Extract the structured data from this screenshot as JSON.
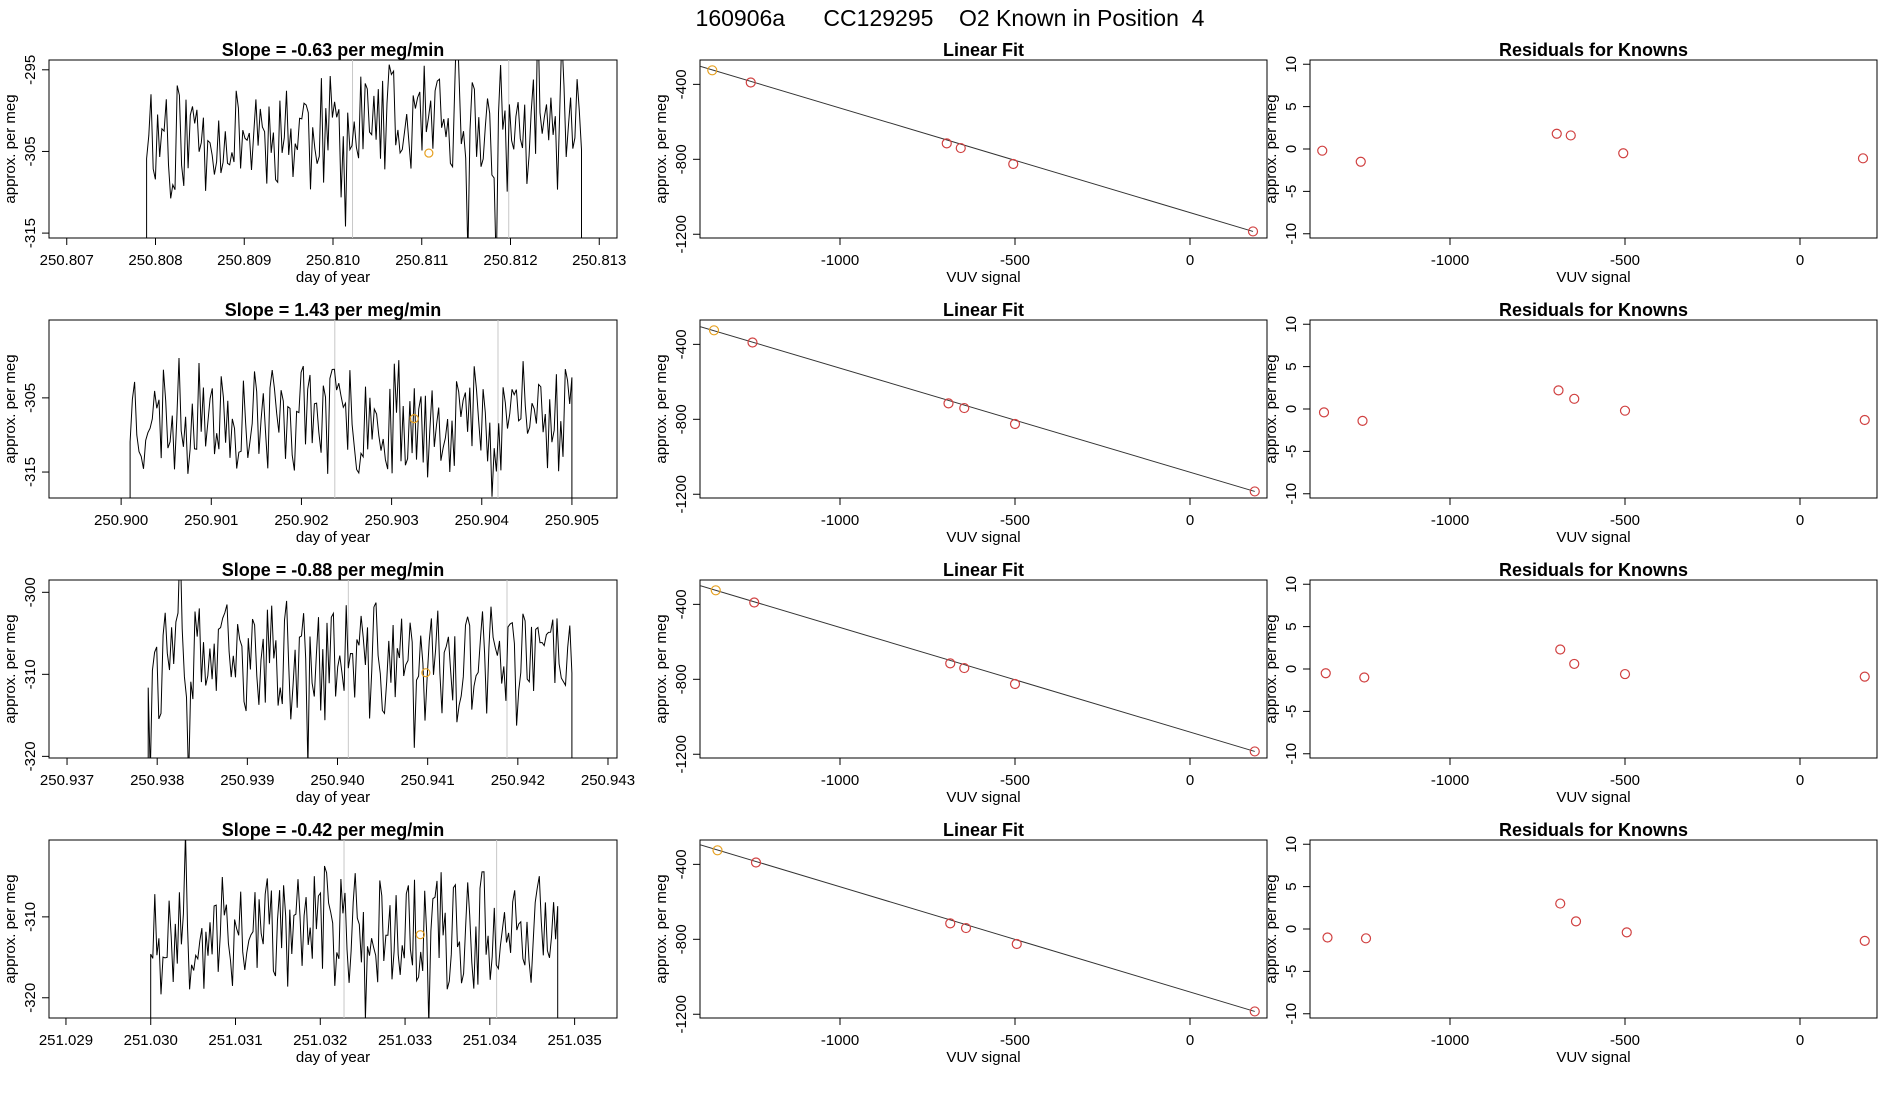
{
  "page": {
    "title": "160906a      CC129295    O2 Known in Position  4"
  },
  "colors": {
    "axis": "#000000",
    "trace": "#000000",
    "fit_line": "#333333",
    "guide_line": "#c8c8c8",
    "point_first": "#e6a020",
    "point_known": "#d04040"
  },
  "chart_data": [
    {
      "type": "line",
      "panel": "time-series",
      "row": 1,
      "title": "Slope =  -0.63  per meg/min",
      "xlabel": "day of year",
      "ylabel": "approx. per meg",
      "xlim": [
        250.8068,
        250.8132
      ],
      "ylim": [
        -315.6,
        -293.8
      ],
      "xticks": [
        250.807,
        250.808,
        250.809,
        250.81,
        250.811,
        250.812,
        250.813
      ],
      "xtick_labels": [
        "250.807",
        "250.808",
        "250.809",
        "250.810",
        "250.811",
        "250.812",
        "250.813"
      ],
      "yticks": [
        -295,
        -305,
        -315
      ],
      "ytick_labels": [
        "-295",
        "-305",
        "-315"
      ],
      "x_start": 250.8079,
      "x_end": 250.8128,
      "n_points": 200,
      "y_center": -302.5,
      "y_amp": 5,
      "seed": 11,
      "guides": [
        250.81022,
        250.81198
      ],
      "marker": {
        "x": 250.81108,
        "y": -305.2
      }
    },
    {
      "type": "scatter",
      "panel": "linear-fit",
      "row": 1,
      "title": "Linear Fit",
      "xlabel": "VUV signal",
      "ylabel": "approx. per meg",
      "xlim": [
        -1400,
        220
      ],
      "ylim": [
        -1220,
        -270
      ],
      "xticks": [
        -1000,
        -500,
        0
      ],
      "xtick_labels": [
        "-1000",
        "-500",
        "0"
      ],
      "yticks": [
        -400,
        -800,
        -1200
      ],
      "ytick_labels": [
        "-400",
        "-800",
        "-1200"
      ],
      "points": [
        {
          "x": -1365,
          "y": -325
        },
        {
          "x": -1255,
          "y": -390
        },
        {
          "x": -695,
          "y": -715
        },
        {
          "x": -655,
          "y": -740
        },
        {
          "x": -505,
          "y": -825
        },
        {
          "x": 180,
          "y": -1185
        }
      ],
      "fit": {
        "x0": -1400,
        "y0": -303,
        "x1": 180,
        "y1": -1185
      }
    },
    {
      "type": "scatter",
      "panel": "residuals",
      "row": 1,
      "title": "Residuals for Knowns",
      "xlabel": "VUV signal",
      "ylabel": "approx. per meg",
      "xlim": [
        -1400,
        220
      ],
      "ylim": [
        -10.5,
        10.5
      ],
      "xticks": [
        -1000,
        -500,
        0
      ],
      "xtick_labels": [
        "-1000",
        "-500",
        "0"
      ],
      "yticks": [
        10,
        5,
        0,
        -5,
        -10
      ],
      "ytick_labels": [
        "10",
        "5",
        "0",
        "-5",
        "-10"
      ],
      "points": [
        {
          "x": -1365,
          "y": -0.2
        },
        {
          "x": -1255,
          "y": -1.5
        },
        {
          "x": -695,
          "y": 1.8
        },
        {
          "x": -655,
          "y": 1.6
        },
        {
          "x": -505,
          "y": -0.5
        },
        {
          "x": 180,
          "y": -1.1
        }
      ]
    },
    {
      "type": "line",
      "panel": "time-series",
      "row": 2,
      "title": "Slope =  1.43  per meg/min",
      "xlabel": "day of year",
      "ylabel": "approx. per meg",
      "xlim": [
        250.8992,
        250.9055
      ],
      "ylim": [
        -318.5,
        -294.5
      ],
      "xticks": [
        250.9,
        250.901,
        250.902,
        250.903,
        250.904,
        250.905
      ],
      "xtick_labels": [
        "250.900",
        "250.901",
        "250.902",
        "250.903",
        "250.904",
        "250.905"
      ],
      "yticks": [
        -305,
        -315
      ],
      "ytick_labels": [
        "-305",
        "-315"
      ],
      "x_start": 250.9001,
      "x_end": 250.905,
      "n_points": 200,
      "y_center": -307.5,
      "y_amp": 5.2,
      "seed": 23,
      "guides": [
        250.90237,
        250.90418
      ],
      "marker": {
        "x": 250.90325,
        "y": -307.8
      }
    },
    {
      "type": "scatter",
      "panel": "linear-fit",
      "row": 2,
      "title": "Linear Fit",
      "xlabel": "VUV signal",
      "ylabel": "approx. per meg",
      "xlim": [
        -1400,
        220
      ],
      "ylim": [
        -1220,
        -270
      ],
      "xticks": [
        -1000,
        -500,
        0
      ],
      "xtick_labels": [
        "-1000",
        "-500",
        "0"
      ],
      "yticks": [
        -400,
        -800,
        -1200
      ],
      "ytick_labels": [
        "-400",
        "-800",
        "-1200"
      ],
      "points": [
        {
          "x": -1360,
          "y": -325
        },
        {
          "x": -1250,
          "y": -390
        },
        {
          "x": -690,
          "y": -715
        },
        {
          "x": -645,
          "y": -740
        },
        {
          "x": -500,
          "y": -825
        },
        {
          "x": 185,
          "y": -1185
        }
      ],
      "fit": {
        "x0": -1400,
        "y0": -305,
        "x1": 185,
        "y1": -1185
      }
    },
    {
      "type": "scatter",
      "panel": "residuals",
      "row": 2,
      "title": "Residuals for Knowns",
      "xlabel": "VUV signal",
      "ylabel": "approx. per meg",
      "xlim": [
        -1400,
        220
      ],
      "ylim": [
        -10.5,
        10.5
      ],
      "xticks": [
        -1000,
        -500,
        0
      ],
      "xtick_labels": [
        "-1000",
        "-500",
        "0"
      ],
      "yticks": [
        10,
        5,
        0,
        -5,
        -10
      ],
      "ytick_labels": [
        "10",
        "5",
        "0",
        "-5",
        "-10"
      ],
      "points": [
        {
          "x": -1360,
          "y": -0.4
        },
        {
          "x": -1250,
          "y": -1.4
        },
        {
          "x": -690,
          "y": 2.2
        },
        {
          "x": -645,
          "y": 1.2
        },
        {
          "x": -500,
          "y": -0.2
        },
        {
          "x": 185,
          "y": -1.3
        }
      ]
    },
    {
      "type": "line",
      "panel": "time-series",
      "row": 3,
      "title": "Slope =  -0.88  per meg/min",
      "xlabel": "day of year",
      "ylabel": "approx. per meg",
      "xlim": [
        250.9368,
        250.9431
      ],
      "ylim": [
        -320.2,
        -298.5
      ],
      "xticks": [
        250.937,
        250.938,
        250.939,
        250.94,
        250.941,
        250.942,
        250.943
      ],
      "xtick_labels": [
        "250.937",
        "250.938",
        "250.939",
        "250.940",
        "250.941",
        "250.942",
        "250.943"
      ],
      "yticks": [
        -300,
        -310,
        -320
      ],
      "ytick_labels": [
        "-300",
        "-310",
        "-320"
      ],
      "x_start": 250.9379,
      "x_end": 250.9426,
      "n_points": 200,
      "y_center": -308.5,
      "y_amp": 4.8,
      "seed": 37,
      "guides": [
        250.94012,
        250.94188
      ],
      "marker": {
        "x": 250.94098,
        "y": -309.8
      }
    },
    {
      "type": "scatter",
      "panel": "linear-fit",
      "row": 3,
      "title": "Linear Fit",
      "xlabel": "VUV signal",
      "ylabel": "approx. per meg",
      "xlim": [
        -1400,
        220
      ],
      "ylim": [
        -1220,
        -270
      ],
      "xticks": [
        -1000,
        -500,
        0
      ],
      "xtick_labels": [
        "-1000",
        "-500",
        "0"
      ],
      "yticks": [
        -400,
        -800,
        -1200
      ],
      "ytick_labels": [
        "-400",
        "-800",
        "-1200"
      ],
      "points": [
        {
          "x": -1355,
          "y": -325
        },
        {
          "x": -1245,
          "y": -390
        },
        {
          "x": -685,
          "y": -715
        },
        {
          "x": -645,
          "y": -740
        },
        {
          "x": -500,
          "y": -825
        },
        {
          "x": 185,
          "y": -1185
        }
      ],
      "fit": {
        "x0": -1400,
        "y0": -300,
        "x1": 185,
        "y1": -1185
      }
    },
    {
      "type": "scatter",
      "panel": "residuals",
      "row": 3,
      "title": "Residuals for Knowns",
      "xlabel": "VUV signal",
      "ylabel": "approx. per meg",
      "xlim": [
        -1400,
        220
      ],
      "ylim": [
        -10.5,
        10.5
      ],
      "xticks": [
        -1000,
        -500,
        0
      ],
      "xtick_labels": [
        "-1000",
        "-500",
        "0"
      ],
      "yticks": [
        10,
        5,
        0,
        -5,
        -10
      ],
      "ytick_labels": [
        "10",
        "5",
        "0",
        "-5",
        "-10"
      ],
      "points": [
        {
          "x": -1355,
          "y": -0.5
        },
        {
          "x": -1245,
          "y": -1.0
        },
        {
          "x": -685,
          "y": 2.3
        },
        {
          "x": -645,
          "y": 0.6
        },
        {
          "x": -500,
          "y": -0.6
        },
        {
          "x": 185,
          "y": -0.9
        }
      ]
    },
    {
      "type": "line",
      "panel": "time-series",
      "row": 4,
      "title": "Slope =  -0.42  per meg/min",
      "xlabel": "day of year",
      "ylabel": "approx. per meg",
      "xlim": [
        251.0288,
        251.0355
      ],
      "ylim": [
        -322.5,
        -300.5
      ],
      "xticks": [
        251.029,
        251.03,
        251.031,
        251.032,
        251.033,
        251.034,
        251.035
      ],
      "xtick_labels": [
        "251.029",
        "251.030",
        "251.031",
        "251.032",
        "251.033",
        "251.034",
        "251.035"
      ],
      "yticks": [
        -310,
        -320
      ],
      "ytick_labels": [
        "-310",
        "-320"
      ],
      "x_start": 251.03,
      "x_end": 251.0348,
      "n_points": 200,
      "y_center": -311.5,
      "y_amp": 4.9,
      "seed": 53,
      "guides": [
        251.03228,
        251.03408
      ],
      "marker": {
        "x": 251.03318,
        "y": -312.2
      }
    },
    {
      "type": "scatter",
      "panel": "linear-fit",
      "row": 4,
      "title": "Linear Fit",
      "xlabel": "VUV signal",
      "ylabel": "approx. per meg",
      "xlim": [
        -1400,
        220
      ],
      "ylim": [
        -1220,
        -270
      ],
      "xticks": [
        -1000,
        -500,
        0
      ],
      "xtick_labels": [
        "-1000",
        "-500",
        "0"
      ],
      "yticks": [
        -400,
        -800,
        -1200
      ],
      "ytick_labels": [
        "-400",
        "-800",
        "-1200"
      ],
      "points": [
        {
          "x": -1350,
          "y": -325
        },
        {
          "x": -1240,
          "y": -390
        },
        {
          "x": -685,
          "y": -715
        },
        {
          "x": -640,
          "y": -740
        },
        {
          "x": -495,
          "y": -825
        },
        {
          "x": 185,
          "y": -1185
        }
      ],
      "fit": {
        "x0": -1400,
        "y0": -295,
        "x1": 185,
        "y1": -1185
      }
    },
    {
      "type": "scatter",
      "panel": "residuals",
      "row": 4,
      "title": "Residuals for Knowns",
      "xlabel": "VUV signal",
      "ylabel": "approx. per meg",
      "xlim": [
        -1400,
        220
      ],
      "ylim": [
        -10.5,
        10.5
      ],
      "xticks": [
        -1000,
        -500,
        0
      ],
      "xtick_labels": [
        "-1000",
        "-500",
        "0"
      ],
      "yticks": [
        10,
        5,
        0,
        -5,
        -10
      ],
      "ytick_labels": [
        "10",
        "5",
        "0",
        "-5",
        "-10"
      ],
      "points": [
        {
          "x": -1350,
          "y": -1.0
        },
        {
          "x": -1240,
          "y": -1.1
        },
        {
          "x": -685,
          "y": 3.0
        },
        {
          "x": -640,
          "y": 0.9
        },
        {
          "x": -495,
          "y": -0.4
        },
        {
          "x": 185,
          "y": -1.4
        }
      ]
    }
  ]
}
